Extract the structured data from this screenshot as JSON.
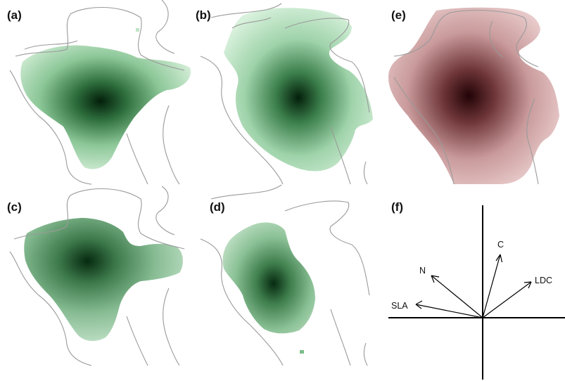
{
  "panels": [
    {
      "id": "a",
      "label": "(a)",
      "tone": "green"
    },
    {
      "id": "b",
      "label": "(b)",
      "tone": "green"
    },
    {
      "id": "c",
      "label": "(c)",
      "tone": "green"
    },
    {
      "id": "d",
      "label": "(d)",
      "tone": "green"
    },
    {
      "id": "e",
      "label": "(e)",
      "tone": "red"
    },
    {
      "id": "f",
      "label": "(f)",
      "tone": "none"
    }
  ],
  "vectors": [
    {
      "name": "C",
      "label": "C"
    },
    {
      "name": "N",
      "label": "N"
    },
    {
      "name": "LDC",
      "label": "LDC"
    },
    {
      "name": "SLA",
      "label": "SLA"
    }
  ],
  "colors": {
    "green_core": "#063b14",
    "green_mid": "#3f8a52",
    "green_edge": "#cdebd1",
    "red_core": "#2a0508",
    "red_mid": "#9a5a5d",
    "red_edge": "#edcfcf",
    "contour": "#9a9a9a",
    "axis": "#000000"
  }
}
